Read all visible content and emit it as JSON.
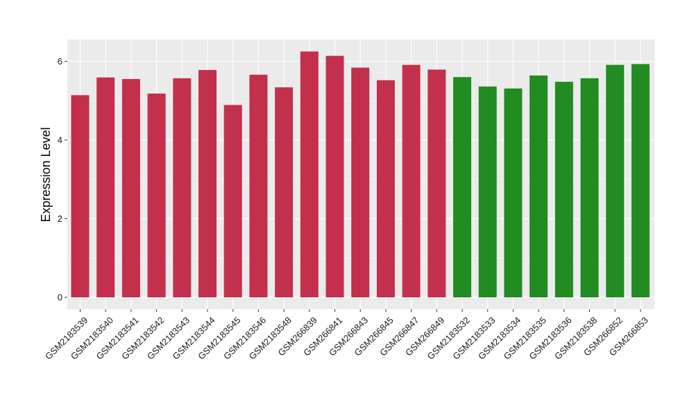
{
  "chart_data": {
    "type": "bar",
    "title": "",
    "xlabel": "",
    "ylabel": "Expression Level",
    "ylim": [
      0,
      6.5
    ],
    "yticks": [
      0,
      2,
      4,
      6
    ],
    "ytick_labels": [
      "0",
      "2",
      "4",
      "6"
    ],
    "grid": true,
    "legend": "none",
    "categories": [
      "GSM2183539",
      "GSM2183540",
      "GSM2183541",
      "GSM2183542",
      "GSM2183543",
      "GSM2183544",
      "GSM2183545",
      "GSM2183546",
      "GSM2183548",
      "GSM266839",
      "GSM266841",
      "GSM266843",
      "GSM266845",
      "GSM266847",
      "GSM266849",
      "GSM2183532",
      "GSM2183533",
      "GSM2183534",
      "GSM2183535",
      "GSM2183536",
      "GSM2183538",
      "GSM266852",
      "GSM266853"
    ],
    "values": [
      5.14,
      5.59,
      5.55,
      5.18,
      5.57,
      5.78,
      4.89,
      5.66,
      5.34,
      6.25,
      6.14,
      5.84,
      5.52,
      5.91,
      5.79,
      5.6,
      5.36,
      5.31,
      5.64,
      5.48,
      5.57,
      5.91,
      5.93
    ],
    "groups": [
      0,
      0,
      0,
      0,
      0,
      0,
      0,
      0,
      0,
      0,
      0,
      0,
      0,
      0,
      0,
      1,
      1,
      1,
      1,
      1,
      1,
      1,
      1
    ],
    "group_colors": [
      "#c3304b",
      "#228b22"
    ],
    "panel_background": "#ebebeb",
    "grid_color": "#ffffff"
  }
}
